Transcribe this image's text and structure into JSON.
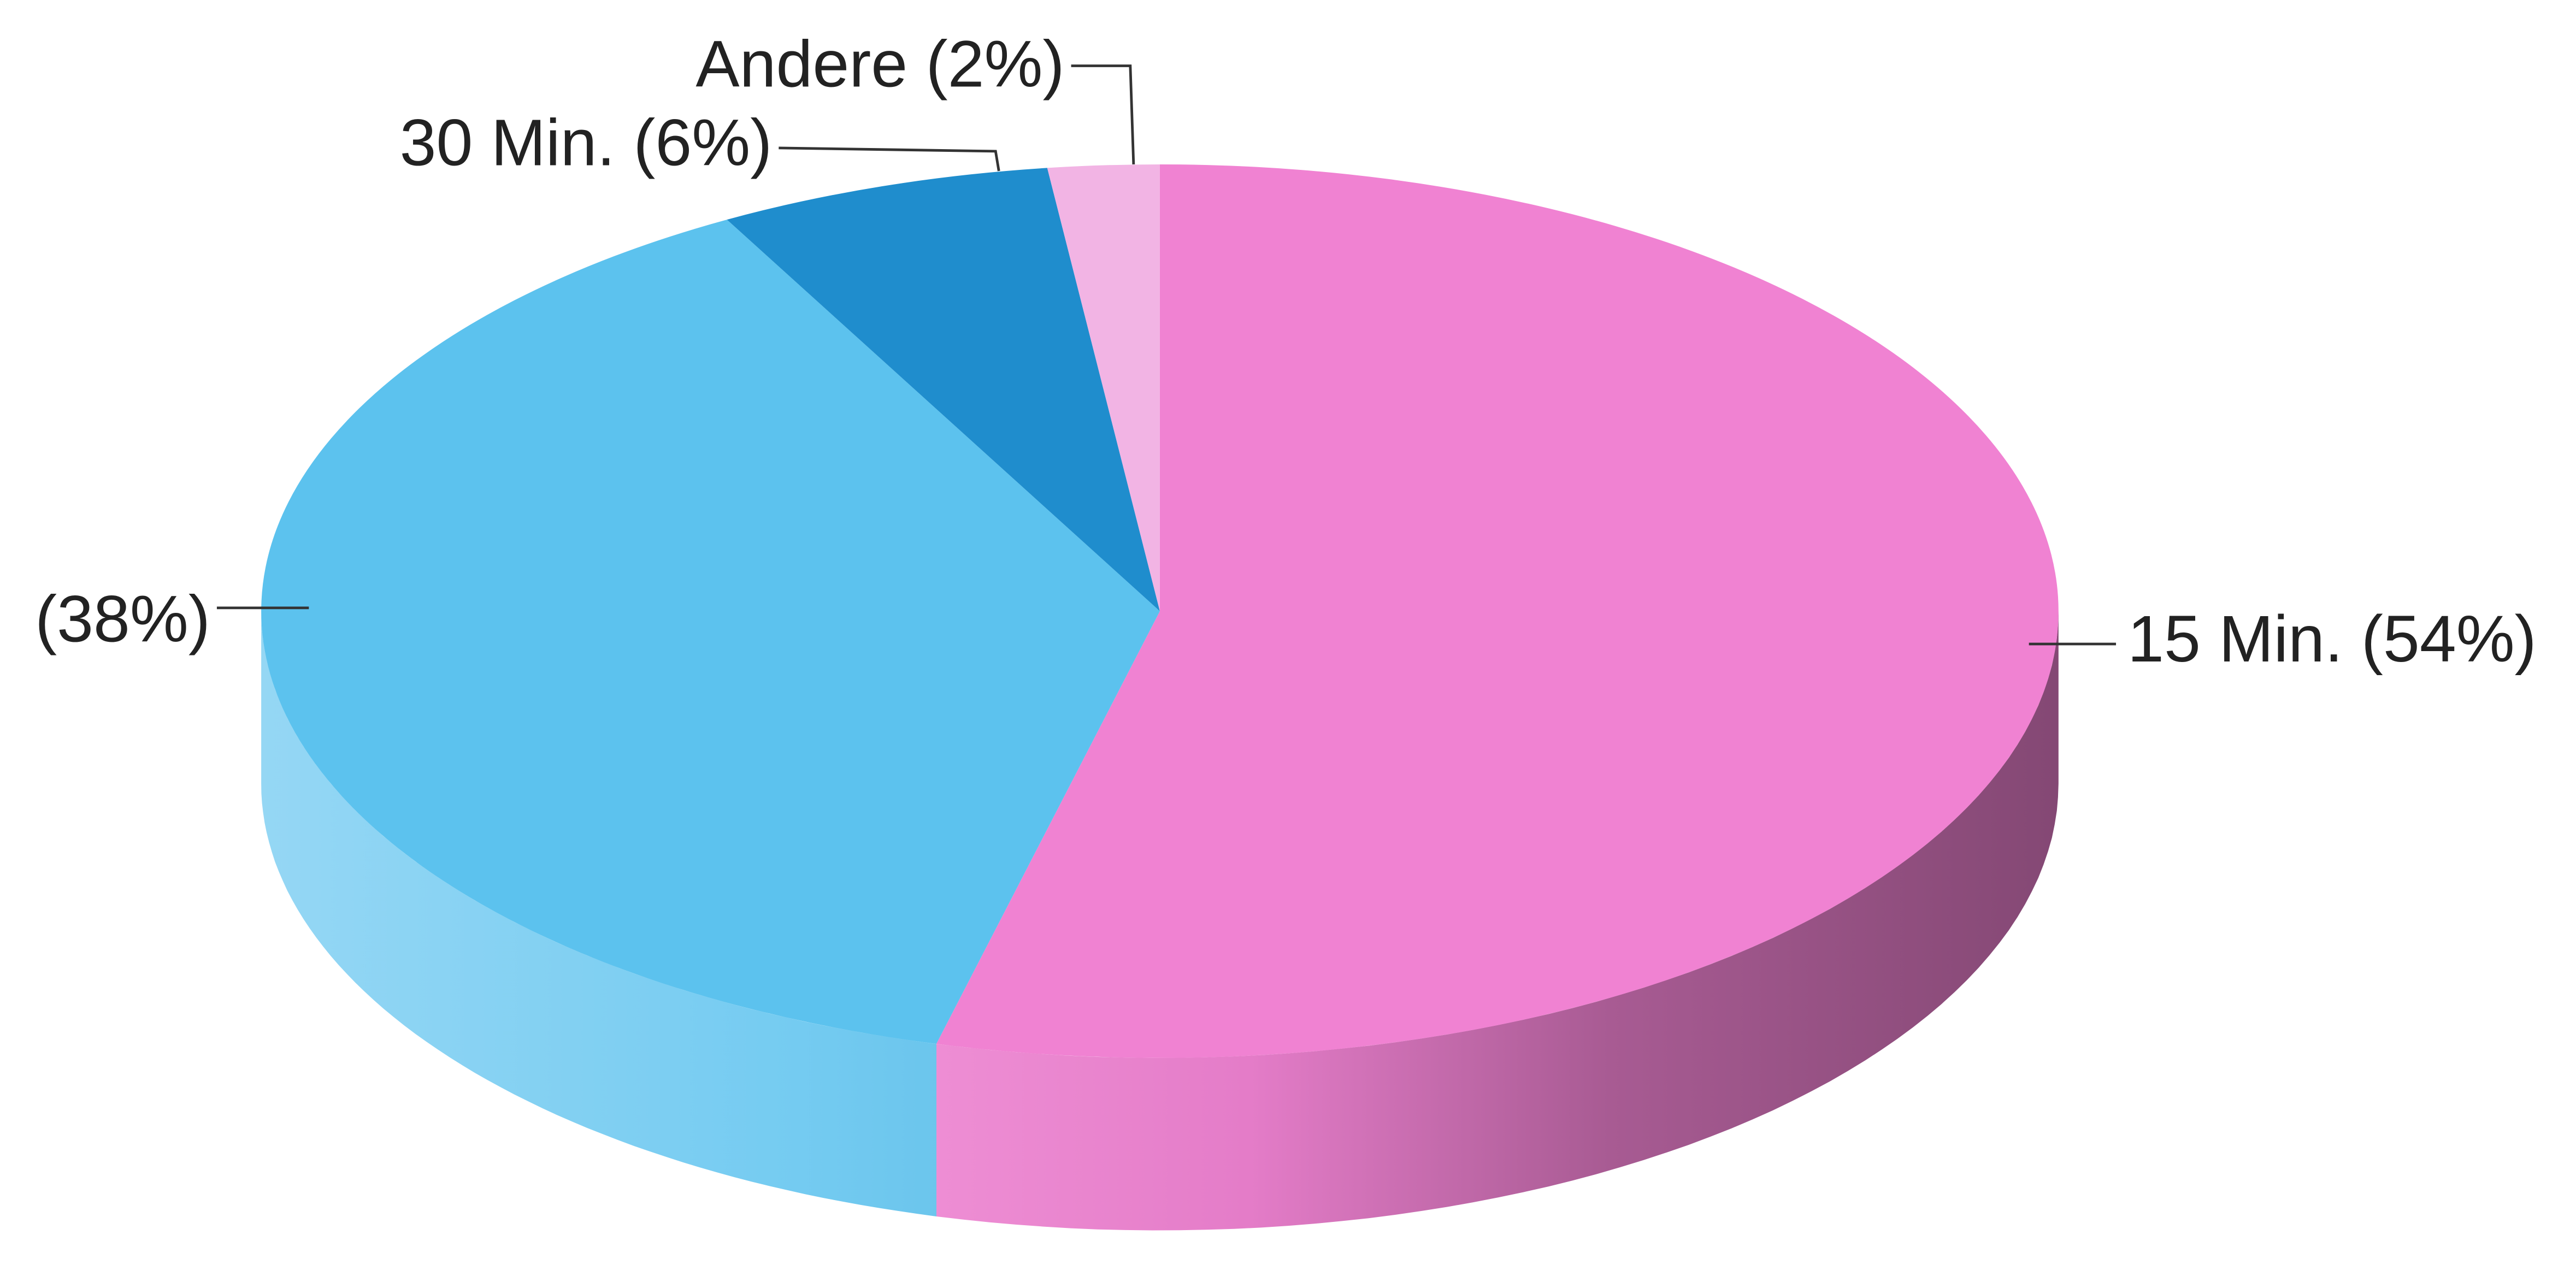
{
  "chart_data": {
    "type": "pie3d",
    "values": [
      54,
      38,
      6,
      2
    ],
    "value_labels": [
      "15 Min. (54%)",
      "(38%)",
      "30 Min. (6%)",
      "Andere (2%)"
    ],
    "colors": [
      "#f082d2",
      "#5cc2ee",
      "#1f8dcd",
      "#f2b4e4"
    ]
  }
}
